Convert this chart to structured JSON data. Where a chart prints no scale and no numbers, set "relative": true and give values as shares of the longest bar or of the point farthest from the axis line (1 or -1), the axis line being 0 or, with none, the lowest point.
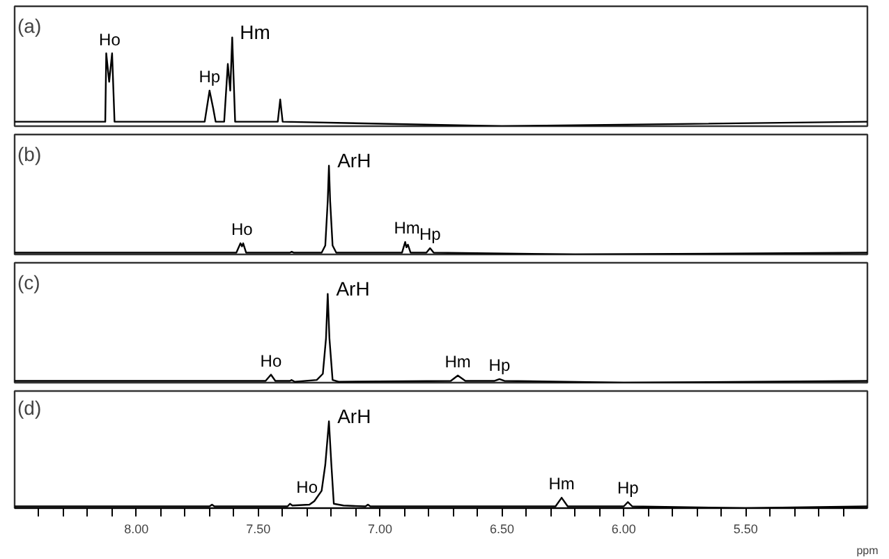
{
  "chart_data": [
    {
      "type": "line",
      "relative": true,
      "title": "(a)",
      "color": "#000000",
      "xlim": [
        8.5,
        5.0
      ],
      "tick_labels": false,
      "x": [
        8.5,
        8.14,
        8.128,
        8.124,
        8.112,
        8.1,
        8.09,
        7.72,
        7.7,
        7.685,
        7.675,
        7.64,
        7.625,
        7.615,
        7.607,
        7.595,
        7.42,
        7.41,
        7.4,
        6.5,
        5.0
      ],
      "values": [
        0.05,
        0.05,
        0.05,
        0.82,
        0.5,
        0.82,
        0.05,
        0.05,
        0.4,
        0.2,
        0.05,
        0.05,
        0.7,
        0.4,
        1.0,
        0.05,
        0.05,
        0.3,
        0.05,
        0.0,
        0.05
      ],
      "annotations": [
        {
          "text": "Ho",
          "x": 8.11,
          "y": 0.82
        },
        {
          "text": "Hp",
          "x": 7.7,
          "y": 0.4
        },
        {
          "text": "Hm",
          "x": 7.61,
          "y": 1.0
        }
      ]
    },
    {
      "type": "line",
      "relative": true,
      "title": "(b)",
      "color": "#000000",
      "xlim": [
        8.5,
        5.0
      ],
      "tick_labels": false,
      "x": [
        8.5,
        7.59,
        7.573,
        7.567,
        7.562,
        7.55,
        7.37,
        7.363,
        7.355,
        7.24,
        7.225,
        7.215,
        7.21,
        7.205,
        7.195,
        7.18,
        6.91,
        6.897,
        6.892,
        6.886,
        6.875,
        6.81,
        6.795,
        6.78,
        6.2,
        5.0
      ],
      "values": [
        0.02,
        0.02,
        0.125,
        0.09,
        0.125,
        0.02,
        0.02,
        0.03,
        0.02,
        0.02,
        0.1,
        0.6,
        1.0,
        0.6,
        0.1,
        0.02,
        0.02,
        0.14,
        0.08,
        0.11,
        0.02,
        0.02,
        0.07,
        0.02,
        0.0,
        0.02
      ],
      "annotations": [
        {
          "text": "ArH",
          "x": 7.21,
          "y": 1.0
        },
        {
          "text": "Ho",
          "x": 7.567,
          "y": 0.125
        },
        {
          "text": "Hm",
          "x": 6.89,
          "y": 0.14
        },
        {
          "text": "Hp",
          "x": 6.795,
          "y": 0.07
        }
      ]
    },
    {
      "type": "line",
      "relative": true,
      "title": "(c)",
      "color": "#000000",
      "xlim": [
        8.5,
        5.0
      ],
      "tick_labels": false,
      "x": [
        8.5,
        7.47,
        7.448,
        7.43,
        7.37,
        7.363,
        7.35,
        7.26,
        7.235,
        7.222,
        7.215,
        7.208,
        7.195,
        7.17,
        6.71,
        6.681,
        6.65,
        6.53,
        6.51,
        6.49,
        6.0,
        5.0
      ],
      "values": [
        0.02,
        0.02,
        0.09,
        0.02,
        0.02,
        0.03,
        0.01,
        0.03,
        0.1,
        0.5,
        1.0,
        0.5,
        0.03,
        0.01,
        0.02,
        0.08,
        0.02,
        0.02,
        0.04,
        0.02,
        0.0,
        0.02
      ],
      "annotations": [
        {
          "text": "ArH",
          "x": 7.215,
          "y": 1.0
        },
        {
          "text": "Ho",
          "x": 7.448,
          "y": 0.09
        },
        {
          "text": "Hm",
          "x": 6.681,
          "y": 0.08
        },
        {
          "text": "Hp",
          "x": 6.51,
          "y": 0.04
        }
      ]
    },
    {
      "type": "line",
      "relative": true,
      "title": "(d)",
      "color": "#000000",
      "xlim": [
        8.5,
        5.0
      ],
      "tick_labels": "x",
      "xlabel": "ppm",
      "xticks": [
        {
          "value": 8.4,
          "label": null
        },
        {
          "value": 8.3,
          "label": null
        },
        {
          "value": 8.2,
          "label": null
        },
        {
          "value": 8.1,
          "label": null
        },
        {
          "value": 8.0,
          "label": "8.00"
        },
        {
          "value": 7.9,
          "label": null
        },
        {
          "value": 7.8,
          "label": null
        },
        {
          "value": 7.7,
          "label": null
        },
        {
          "value": 7.6,
          "label": null
        },
        {
          "value": 7.5,
          "label": "7.50"
        },
        {
          "value": 7.4,
          "label": null
        },
        {
          "value": 7.3,
          "label": null
        },
        {
          "value": 7.2,
          "label": null
        },
        {
          "value": 7.1,
          "label": null
        },
        {
          "value": 7.0,
          "label": "7.00"
        },
        {
          "value": 6.9,
          "label": null
        },
        {
          "value": 6.8,
          "label": null
        },
        {
          "value": 6.7,
          "label": null
        },
        {
          "value": 6.6,
          "label": null
        },
        {
          "value": 6.5,
          "label": "6.50"
        },
        {
          "value": 6.4,
          "label": null
        },
        {
          "value": 6.3,
          "label": null
        },
        {
          "value": 6.2,
          "label": null
        },
        {
          "value": 6.1,
          "label": null
        },
        {
          "value": 6.0,
          "label": "6.00"
        },
        {
          "value": 5.9,
          "label": null
        },
        {
          "value": 5.8,
          "label": null
        },
        {
          "value": 5.7,
          "label": null
        },
        {
          "value": 5.6,
          "label": null
        },
        {
          "value": 5.5,
          "label": "5.50"
        },
        {
          "value": 5.4,
          "label": null
        },
        {
          "value": 5.3,
          "label": null
        },
        {
          "value": 5.2,
          "label": null
        },
        {
          "value": 5.1,
          "label": null
        }
      ],
      "x": [
        8.5,
        7.7,
        7.69,
        7.68,
        7.38,
        7.37,
        7.36,
        7.29,
        7.27,
        7.24,
        7.225,
        7.21,
        7.2,
        7.19,
        7.15,
        7.06,
        7.05,
        7.04,
        6.28,
        6.255,
        6.23,
        6.0,
        5.983,
        5.965,
        5.5,
        5.0
      ],
      "values": [
        0.02,
        0.02,
        0.04,
        0.02,
        0.02,
        0.05,
        0.03,
        0.04,
        0.08,
        0.2,
        0.5,
        1.0,
        0.5,
        0.05,
        0.03,
        0.02,
        0.04,
        0.02,
        0.02,
        0.12,
        0.02,
        0.02,
        0.07,
        0.02,
        0.0,
        0.02
      ],
      "annotations": [
        {
          "text": "ArH",
          "x": 7.21,
          "y": 1.0
        },
        {
          "text": "Ho",
          "x": 7.3,
          "y": 0.08
        },
        {
          "text": "Hm",
          "x": 6.255,
          "y": 0.12
        },
        {
          "text": "Hp",
          "x": 5.983,
          "y": 0.07
        }
      ]
    }
  ]
}
